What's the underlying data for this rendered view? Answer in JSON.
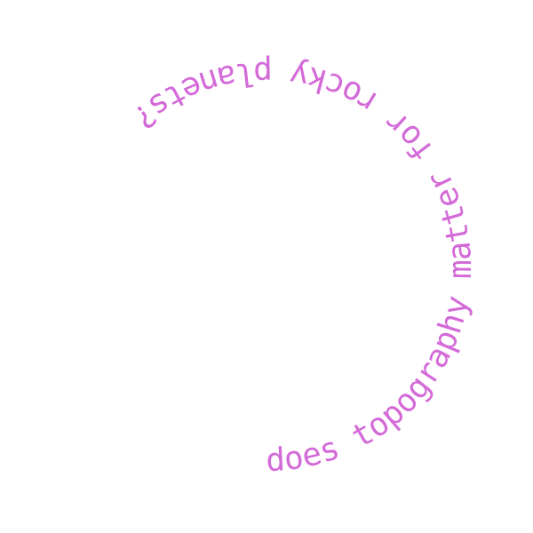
{
  "curved_text": {
    "text": "does topography matter for rocky planets?",
    "color": "#d36ad8"
  }
}
